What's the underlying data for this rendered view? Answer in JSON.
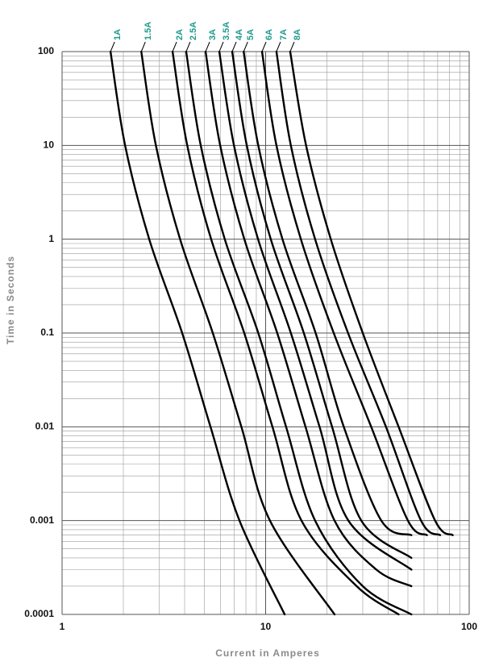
{
  "chart_data": {
    "type": "line",
    "x_label": "Current in Amperes",
    "y_label": "Time in Seconds",
    "log_x": true,
    "log_y": true,
    "grid": true,
    "label_color": "#1f9a8c",
    "xlim": [
      1,
      100
    ],
    "xticks": [
      1,
      10,
      100
    ],
    "ylim": [
      0.0001,
      100
    ],
    "yticks": [
      100,
      10,
      1,
      0.1,
      0.01,
      0.001,
      0.0001
    ],
    "series": [
      {
        "name": "1A",
        "color": "#000000",
        "x": [
          1.73,
          2.04,
          2.68,
          3.89,
          5.36,
          7.44,
          12.4
        ],
        "y": [
          100,
          10,
          1,
          0.1,
          0.01,
          0.001,
          0.0001
        ]
      },
      {
        "name": "1.5A",
        "color": "#000000",
        "x": [
          2.45,
          2.89,
          3.8,
          5.5,
          7.6,
          10.5,
          21.8
        ],
        "y": [
          100,
          10,
          1,
          0.1,
          0.01,
          0.001,
          0.0001
        ]
      },
      {
        "name": "2A",
        "color": "#000000",
        "x": [
          3.49,
          4.12,
          5.4,
          7.85,
          10.8,
          15,
          28,
          45
        ],
        "y": [
          100,
          10,
          1,
          0.1,
          0.01,
          0.001,
          0.0002,
          0.0001
        ]
      },
      {
        "name": "2.5A",
        "color": "#000000",
        "x": [
          4.07,
          4.8,
          6.3,
          9.2,
          12.6,
          17.5,
          30,
          52
        ],
        "y": [
          100,
          10,
          1,
          0.1,
          0.01,
          0.001,
          0.0002,
          0.0001
        ]
      },
      {
        "name": "3A",
        "color": "#000000",
        "x": [
          5.07,
          5.98,
          7.86,
          11.4,
          15.7,
          21.8,
          35,
          52
        ],
        "y": [
          100,
          10,
          1,
          0.1,
          0.01,
          0.001,
          0.0003,
          0.0002
        ]
      },
      {
        "name": "3.5A",
        "color": "#000000",
        "x": [
          5.92,
          6.99,
          9.18,
          13.3,
          18.4,
          25.5,
          52
        ],
        "y": [
          100,
          10,
          1,
          0.1,
          0.01,
          0.001,
          0.0003
        ]
      },
      {
        "name": "4A",
        "color": "#000000",
        "x": [
          6.85,
          8.08,
          10.6,
          15.4,
          21.2,
          29.5,
          52
        ],
        "y": [
          100,
          10,
          1,
          0.1,
          0.01,
          0.001,
          0.0004
        ]
      },
      {
        "name": "5A",
        "color": "#000000",
        "x": [
          7.8,
          9.2,
          12.1,
          17.6,
          24.2,
          37,
          52
        ],
        "y": [
          100,
          10,
          1,
          0.1,
          0.01,
          0.001,
          0.0007
        ]
      },
      {
        "name": "6A",
        "color": "#000000",
        "x": [
          9.6,
          11.3,
          14.9,
          21.6,
          33,
          50,
          62
        ],
        "y": [
          100,
          10,
          1,
          0.1,
          0.01,
          0.001,
          0.0007
        ]
      },
      {
        "name": "7A",
        "color": "#000000",
        "x": [
          11.3,
          13.3,
          17.5,
          25.4,
          39,
          58,
          72
        ],
        "y": [
          100,
          10,
          1,
          0.1,
          0.01,
          0.001,
          0.0007
        ]
      },
      {
        "name": "8A",
        "color": "#000000",
        "x": [
          13.2,
          15.8,
          20.9,
          30,
          45,
          68,
          83
        ],
        "y": [
          100,
          10,
          1,
          0.1,
          0.01,
          0.001,
          0.0007
        ]
      }
    ]
  }
}
